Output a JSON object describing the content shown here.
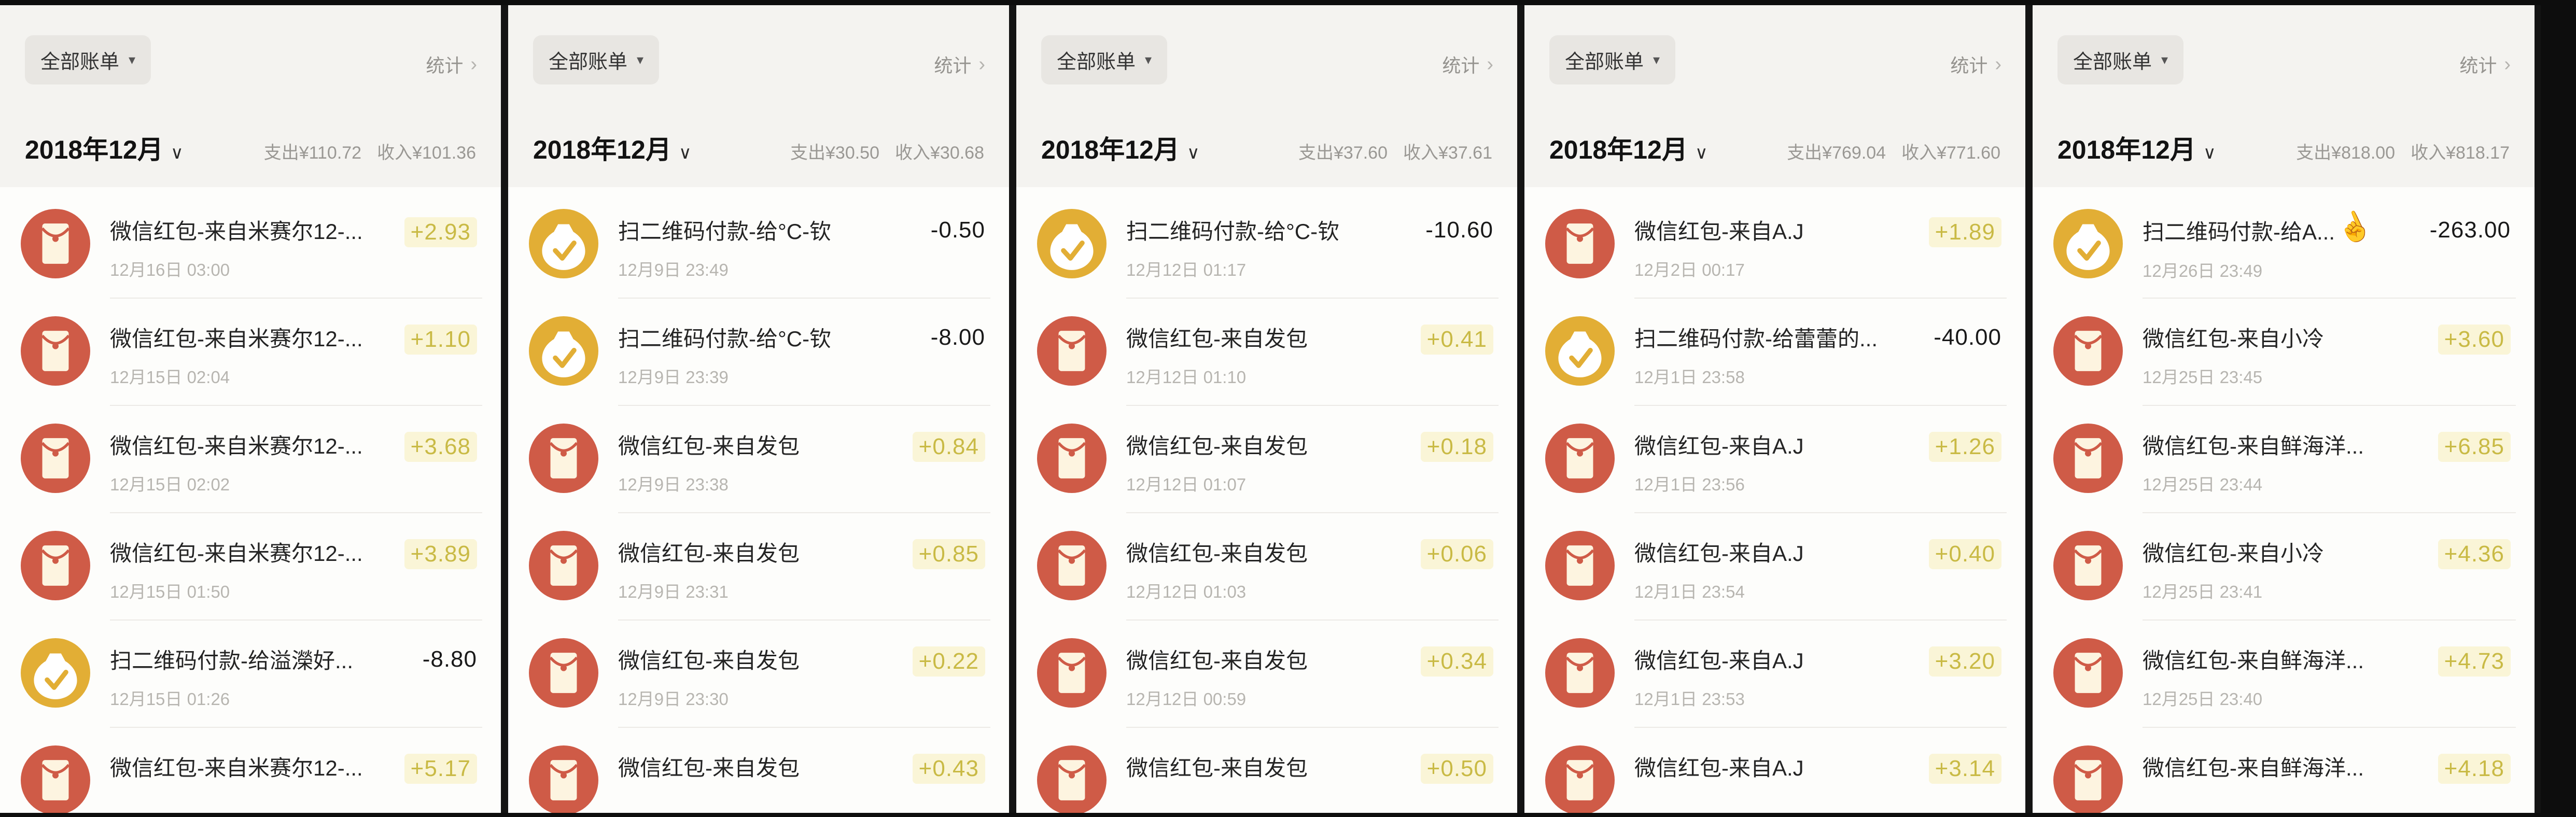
{
  "colors": {
    "envelope_red": "#cf5b47",
    "moneybag_yellow": "#e2ae35",
    "income_text": "#c9ba45",
    "income_highlight": "#faf5d7",
    "expense_text": "#191919"
  },
  "panels": [
    {
      "filter_label": "全部账单",
      "stats_label": "统计",
      "month_label": "2018年12月",
      "expense_summary": "支出¥110.72",
      "income_summary": "收入¥101.36",
      "rows": [
        {
          "icon": "red-envelope-icon",
          "title": "微信红包-来自米赛尔12-...",
          "date": "12月16日 03:00",
          "amount": "+2.93",
          "type": "income"
        },
        {
          "icon": "red-envelope-icon",
          "title": "微信红包-来自米赛尔12-...",
          "date": "12月15日 02:04",
          "amount": "+1.10",
          "type": "income"
        },
        {
          "icon": "red-envelope-icon",
          "title": "微信红包-来自米赛尔12-...",
          "date": "12月15日 02:02",
          "amount": "+3.68",
          "type": "income"
        },
        {
          "icon": "red-envelope-icon",
          "title": "微信红包-来自米赛尔12-...",
          "date": "12月15日 01:50",
          "amount": "+3.89",
          "type": "income"
        },
        {
          "icon": "money-bag-icon",
          "title": "扫二维码付款-给溢濚好...",
          "date": "12月15日 01:26",
          "amount": "-8.80",
          "type": "expense"
        },
        {
          "icon": "red-envelope-icon",
          "title": "微信红包-来自米赛尔12-...",
          "date": "",
          "amount": "+5.17",
          "type": "income"
        }
      ]
    },
    {
      "filter_label": "全部账单",
      "stats_label": "统计",
      "month_label": "2018年12月",
      "expense_summary": "支出¥30.50",
      "income_summary": "收入¥30.68",
      "rows": [
        {
          "icon": "money-bag-icon",
          "title": "扫二维码付款-给°C-钦",
          "date": "12月9日 23:49",
          "amount": "-0.50",
          "type": "expense"
        },
        {
          "icon": "money-bag-icon",
          "title": "扫二维码付款-给°C-钦",
          "date": "12月9日 23:39",
          "amount": "-8.00",
          "type": "expense"
        },
        {
          "icon": "red-envelope-icon",
          "title": "微信红包-来自发包",
          "date": "12月9日 23:38",
          "amount": "+0.84",
          "type": "income"
        },
        {
          "icon": "red-envelope-icon",
          "title": "微信红包-来自发包",
          "date": "12月9日 23:31",
          "amount": "+0.85",
          "type": "income"
        },
        {
          "icon": "red-envelope-icon",
          "title": "微信红包-来自发包",
          "date": "12月9日 23:30",
          "amount": "+0.22",
          "type": "income"
        },
        {
          "icon": "red-envelope-icon",
          "title": "微信红包-来自发包",
          "date": "",
          "amount": "+0.43",
          "type": "income"
        }
      ]
    },
    {
      "filter_label": "全部账单",
      "stats_label": "统计",
      "month_label": "2018年12月",
      "expense_summary": "支出¥37.60",
      "income_summary": "收入¥37.61",
      "rows": [
        {
          "icon": "money-bag-icon",
          "title": "扫二维码付款-给°C-钦",
          "date": "12月12日 01:17",
          "amount": "-10.60",
          "type": "expense"
        },
        {
          "icon": "red-envelope-icon",
          "title": "微信红包-来自发包",
          "date": "12月12日 01:10",
          "amount": "+0.41",
          "type": "income"
        },
        {
          "icon": "red-envelope-icon",
          "title": "微信红包-来自发包",
          "date": "12月12日 01:07",
          "amount": "+0.18",
          "type": "income"
        },
        {
          "icon": "red-envelope-icon",
          "title": "微信红包-来自发包",
          "date": "12月12日 01:03",
          "amount": "+0.06",
          "type": "income"
        },
        {
          "icon": "red-envelope-icon",
          "title": "微信红包-来自发包",
          "date": "12月12日 00:59",
          "amount": "+0.34",
          "type": "income"
        },
        {
          "icon": "red-envelope-icon",
          "title": "微信红包-来自发包",
          "date": "",
          "amount": "+0.50",
          "type": "income"
        }
      ]
    },
    {
      "filter_label": "全部账单",
      "stats_label": "统计",
      "month_label": "2018年12月",
      "expense_summary": "支出¥769.04",
      "income_summary": "收入¥771.60",
      "rows": [
        {
          "icon": "red-envelope-icon",
          "title": "微信红包-来自A.J",
          "date": "12月2日 00:17",
          "amount": "+1.89",
          "type": "income"
        },
        {
          "icon": "money-bag-icon",
          "title": "扫二维码付款-给蕾蕾的...",
          "date": "12月1日 23:58",
          "amount": "-40.00",
          "type": "expense"
        },
        {
          "icon": "red-envelope-icon",
          "title": "微信红包-来自A.J",
          "date": "12月1日 23:56",
          "amount": "+1.26",
          "type": "income"
        },
        {
          "icon": "red-envelope-icon",
          "title": "微信红包-来自A.J",
          "date": "12月1日 23:54",
          "amount": "+0.40",
          "type": "income"
        },
        {
          "icon": "red-envelope-icon",
          "title": "微信红包-来自A.J",
          "date": "12月1日 23:53",
          "amount": "+3.20",
          "type": "income"
        },
        {
          "icon": "red-envelope-icon",
          "title": "微信红包-来自A.J",
          "date": "",
          "amount": "+3.14",
          "type": "income"
        }
      ]
    },
    {
      "filter_label": "全部账单",
      "stats_label": "统计",
      "month_label": "2018年12月",
      "expense_summary": "支出¥818.00",
      "income_summary": "收入¥818.17",
      "rows": [
        {
          "icon": "money-bag-icon",
          "title": "扫二维码付款-给A...",
          "date": "12月26日 23:49",
          "amount": "-263.00",
          "type": "expense",
          "tap_gesture": true
        },
        {
          "icon": "red-envelope-icon",
          "title": "微信红包-来自小冷",
          "date": "12月25日 23:45",
          "amount": "+3.60",
          "type": "income"
        },
        {
          "icon": "red-envelope-icon",
          "title": "微信红包-来自鲜海洋...",
          "date": "12月25日 23:44",
          "amount": "+6.85",
          "type": "income"
        },
        {
          "icon": "red-envelope-icon",
          "title": "微信红包-来自小冷",
          "date": "12月25日 23:41",
          "amount": "+4.36",
          "type": "income"
        },
        {
          "icon": "red-envelope-icon",
          "title": "微信红包-来自鲜海洋...",
          "date": "12月25日 23:40",
          "amount": "+4.73",
          "type": "income"
        },
        {
          "icon": "red-envelope-icon",
          "title": "微信红包-来自鲜海洋...",
          "date": "",
          "amount": "+4.18",
          "type": "income"
        }
      ]
    }
  ],
  "icons": {
    "filter_arrow": "▾",
    "stats_chevron": "›",
    "month_chevron": "∨",
    "tap_gesture": "☝"
  }
}
